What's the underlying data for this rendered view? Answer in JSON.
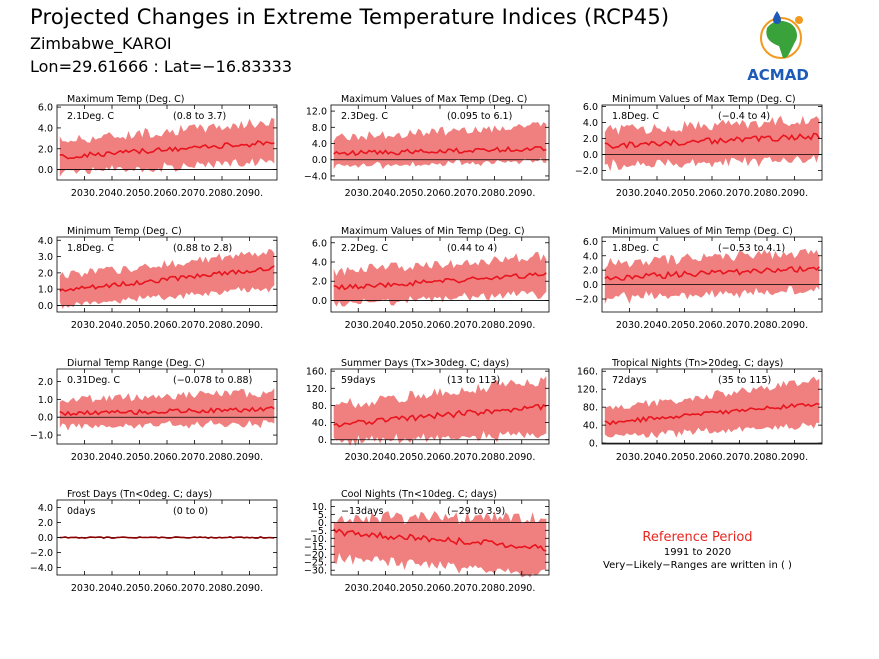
{
  "header": {
    "title": "Projected Changes in Extreme Temperature Indices (RCP45)",
    "location": "Zimbabwe_KAROI",
    "coords": "Lon=29.61666 : Lat=−16.83333",
    "logo_text": "ACMAD"
  },
  "colors": {
    "median_line": "#e8141e",
    "range_fill": "#f08080",
    "zero_line": "#000000",
    "frost_line": "#8b0000",
    "logo_blue": "#1e5bb8",
    "logo_green": "#3aa23a",
    "logo_orange": "#f29a1f"
  },
  "reference": {
    "title": "Reference Period",
    "years": "1991 to 2020",
    "note": "Very−Likely−Ranges are written in ( )"
  },
  "chart_data": [
    {
      "type": "area",
      "title": "Maximum Temp (Deg. C)",
      "value_label": "2.1Deg. C",
      "range_label": "(0.8 to 3.7)",
      "yticks": [
        "0.0",
        "2.0",
        "4.0",
        "6.0"
      ],
      "ylim": [
        -1.0,
        6.2
      ],
      "xticks": [
        "2030.",
        "2040.",
        "2050.",
        "2060.",
        "2070.",
        "2080.",
        "2090."
      ],
      "xlim": [
        2020,
        2100
      ],
      "series": [
        {
          "x_start": 2021,
          "x_end": 2099,
          "trend_start": 1.2,
          "trend_end": 2.6,
          "lower_start": 0.0,
          "lower_end": 1.1,
          "upper_start": 2.8,
          "upper_end": 4.6
        }
      ]
    },
    {
      "type": "area",
      "title": "Maximum Values of Max Temp (Deg. C)",
      "value_label": "2.3Deg. C",
      "range_label": "(0.095 to 6.1)",
      "yticks": [
        "−4.0",
        "0.0",
        "4.0",
        "8.0",
        "12.0"
      ],
      "ylim": [
        -5.0,
        13.5
      ],
      "xticks": [
        "2030.",
        "2040.",
        "2050.",
        "2060.",
        "2070.",
        "2080.",
        "2090."
      ],
      "xlim": [
        2020,
        2100
      ],
      "series": [
        {
          "x_start": 2021,
          "x_end": 2099,
          "trend_start": 1.5,
          "trend_end": 2.8,
          "lower_start": -1.0,
          "lower_end": 0.2,
          "upper_start": 5.5,
          "upper_end": 8.5
        }
      ]
    },
    {
      "type": "area",
      "title": "Minimum Values of Max Temp (Deg. C)",
      "value_label": "1.8Deg. C",
      "range_label": "(−0.4 to 4)",
      "yticks": [
        "−2.0",
        "0.0",
        "2.0",
        "4.0",
        "6.0"
      ],
      "ylim": [
        -3.2,
        6.2
      ],
      "xticks": [
        "2030.",
        "2040.",
        "2050.",
        "2060.",
        "2070.",
        "2080.",
        "2090."
      ],
      "xlim": [
        2020,
        2100
      ],
      "series": [
        {
          "x_start": 2021,
          "x_end": 2099,
          "trend_start": 1.1,
          "trend_end": 2.3,
          "lower_start": -1.0,
          "lower_end": -0.2,
          "upper_start": 3.0,
          "upper_end": 4.4
        }
      ]
    },
    {
      "type": "area",
      "title": "Minimum Temp (Deg. C)",
      "value_label": "1.8Deg. C",
      "range_label": "(0.88 to 2.8)",
      "yticks": [
        "0.0",
        "1.0",
        "2.0",
        "3.0",
        "4.0"
      ],
      "ylim": [
        -0.4,
        4.2
      ],
      "xticks": [
        "2030.",
        "2040.",
        "2050.",
        "2060.",
        "2070.",
        "2080.",
        "2090."
      ],
      "xlim": [
        2020,
        2100
      ],
      "series": [
        {
          "x_start": 2021,
          "x_end": 2099,
          "trend_start": 0.9,
          "trend_end": 2.3,
          "lower_start": 0.2,
          "lower_end": 1.2,
          "upper_start": 1.8,
          "upper_end": 3.3
        }
      ]
    },
    {
      "type": "area",
      "title": "Maximum Values of Min Temp (Deg. C)",
      "value_label": "2.2Deg. C",
      "range_label": "(0.44 to 4)",
      "yticks": [
        "0.0",
        "2.0",
        "4.0",
        "6.0"
      ],
      "ylim": [
        -1.2,
        6.6
      ],
      "xticks": [
        "2030.",
        "2040.",
        "2050.",
        "2060.",
        "2070.",
        "2080.",
        "2090."
      ],
      "xlim": [
        2020,
        2100
      ],
      "series": [
        {
          "x_start": 2021,
          "x_end": 2099,
          "trend_start": 1.3,
          "trend_end": 2.7,
          "lower_start": 0.0,
          "lower_end": 1.0,
          "upper_start": 3.0,
          "upper_end": 4.6
        }
      ]
    },
    {
      "type": "area",
      "title": "Minimum Values of Min Temp (Deg. C)",
      "value_label": "1.8Deg. C",
      "range_label": "(−0.53 to 4.1)",
      "yticks": [
        "−2.0",
        "0.0",
        "2.0",
        "4.0",
        "6.0"
      ],
      "ylim": [
        -3.8,
        6.6
      ],
      "xticks": [
        "2030.",
        "2040.",
        "2050.",
        "2060.",
        "2070.",
        "2080.",
        "2090."
      ],
      "xlim": [
        2020,
        2100
      ],
      "series": [
        {
          "x_start": 2021,
          "x_end": 2099,
          "trend_start": 0.9,
          "trend_end": 2.3,
          "lower_start": -1.5,
          "lower_end": -0.3,
          "upper_start": 3.0,
          "upper_end": 4.6
        }
      ]
    },
    {
      "type": "area",
      "title": "Diurnal Temp Range (Deg. C)",
      "value_label": "0.31Deg. C",
      "range_label": "(−0.078 to 0.88)",
      "yticks": [
        "−1.0",
        "0.0",
        "1.0",
        "2.0"
      ],
      "ylim": [
        -1.5,
        2.7
      ],
      "xticks": [
        "2030.",
        "2040.",
        "2050.",
        "2060.",
        "2070.",
        "2080.",
        "2090."
      ],
      "xlim": [
        2020,
        2100
      ],
      "series": [
        {
          "x_start": 2021,
          "x_end": 2099,
          "trend_start": 0.2,
          "trend_end": 0.45,
          "lower_start": -0.4,
          "lower_end": -0.2,
          "upper_start": 1.0,
          "upper_end": 1.4
        }
      ]
    },
    {
      "type": "area",
      "title": "Summer Days (Tx>30deg. C; days)",
      "value_label": "59days",
      "range_label": "(13 to 113)",
      "yticks": [
        "0.",
        "40.",
        "80.",
        "120.",
        "160."
      ],
      "ylim": [
        -10,
        165
      ],
      "xticks": [
        "2030.",
        "2040.",
        "2050.",
        "2060.",
        "2070.",
        "2080.",
        "2090."
      ],
      "xlim": [
        2020,
        2100
      ],
      "series": [
        {
          "x_start": 2021,
          "x_end": 2099,
          "trend_start": 35,
          "trend_end": 78,
          "lower_start": 5,
          "lower_end": 20,
          "upper_start": 80,
          "upper_end": 140
        }
      ]
    },
    {
      "type": "area",
      "title": "Tropical Nights (Tn>20deg. C; days)",
      "value_label": "72days",
      "range_label": "(35 to 115)",
      "yticks": [
        "0.",
        "40.",
        "80.",
        "120.",
        "160."
      ],
      "ylim": [
        -2,
        165
      ],
      "xticks": [
        "2030.",
        "2040.",
        "2050.",
        "2060.",
        "2070.",
        "2080.",
        "2090."
      ],
      "xlim": [
        2020,
        2100
      ],
      "series": [
        {
          "x_start": 2021,
          "x_end": 2099,
          "trend_start": 45,
          "trend_end": 88,
          "lower_start": 20,
          "lower_end": 45,
          "upper_start": 75,
          "upper_end": 140
        }
      ]
    },
    {
      "type": "line",
      "title": "Frost Days (Tn<0deg. C; days)",
      "value_label": "0days",
      "range_label": "(0 to 0)",
      "yticks": [
        "−4.0",
        "−2.0",
        "0.0",
        "2.0",
        "4.0"
      ],
      "ylim": [
        -5.0,
        5.0
      ],
      "xticks": [
        "2030.",
        "2040.",
        "2050.",
        "2060.",
        "2070.",
        "2080.",
        "2090."
      ],
      "xlim": [
        2020,
        2100
      ],
      "series": [
        {
          "x_start": 2021,
          "x_end": 2099,
          "trend_start": 0,
          "trend_end": 0,
          "lower_start": 0,
          "lower_end": 0,
          "upper_start": 0,
          "upper_end": 0
        }
      ]
    },
    {
      "type": "area",
      "title": "Cool Nights (Tn<10deg. C; days)",
      "value_label": "−13days",
      "range_label": "(−29 to 3.9)",
      "yticks": [
        "−30.",
        "−25.",
        "−20.",
        "−15.",
        "−10.",
        "−5.",
        "0.",
        "5.",
        "10."
      ],
      "ylim": [
        -33,
        14
      ],
      "xticks": [
        "2030.",
        "2040.",
        "2050.",
        "2060.",
        "2070.",
        "2080.",
        "2090."
      ],
      "xlim": [
        2020,
        2100
      ],
      "series": [
        {
          "x_start": 2021,
          "x_end": 2099,
          "trend_start": -6,
          "trend_end": -16,
          "lower_start": -20,
          "lower_end": -30,
          "upper_start": 3,
          "upper_end": 3
        }
      ]
    }
  ]
}
